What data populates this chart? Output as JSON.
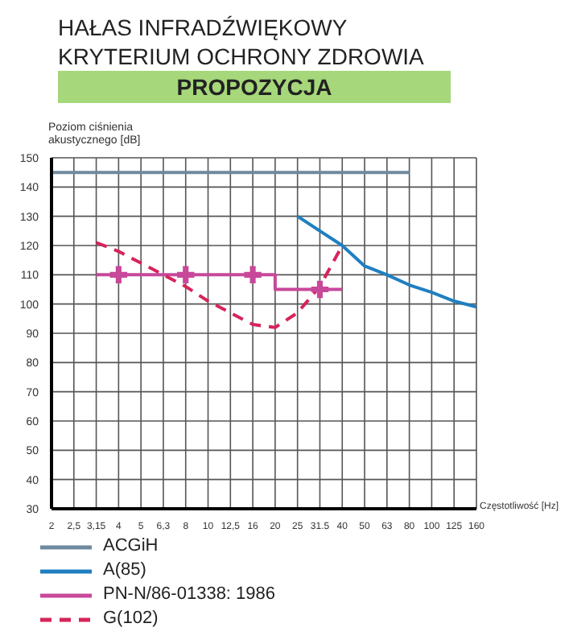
{
  "chart_data": {
    "type": "line",
    "title": "HAŁAS INFRADŹWIĘKOWY\nKRYTERIUM OCHRONY ZDROWIA",
    "subtitle": "PROPOZYCJA",
    "xlabel": "Częstotliwość [Hz]",
    "ylabel": "Poziom ciśnienia\nakustycznego [dB]",
    "categories": [
      "2",
      "2,5",
      "3,15",
      "4",
      "5",
      "6,3",
      "8",
      "10",
      "12,5",
      "16",
      "20",
      "25",
      "31.5",
      "40",
      "50",
      "63",
      "80",
      "100",
      "125",
      "160"
    ],
    "ylim": [
      30,
      150
    ],
    "yticks": [
      30,
      40,
      50,
      60,
      70,
      80,
      90,
      100,
      110,
      120,
      130,
      140,
      150
    ],
    "grid": true,
    "legend": "bottom",
    "marker": "none",
    "series": [
      {
        "name": "ACGiH",
        "color": "#6f8a9e",
        "values": [
          145,
          145,
          145,
          145,
          145,
          145,
          145,
          145,
          145,
          145,
          145,
          145,
          145,
          145,
          145,
          145,
          145,
          null,
          null,
          null
        ]
      },
      {
        "name": "A(85)",
        "color": "#1f7fc0",
        "values": [
          null,
          null,
          null,
          null,
          null,
          null,
          null,
          null,
          null,
          null,
          null,
          130,
          125,
          120,
          113,
          110,
          106.5,
          104,
          101,
          99
        ]
      },
      {
        "name": "PN-N/86-01338: 1986",
        "color": "#c8489a",
        "type": "step",
        "values": [
          null,
          null,
          110,
          110,
          110,
          110,
          110,
          110,
          110,
          110,
          105,
          105,
          105,
          105,
          null,
          null,
          null,
          null,
          null,
          null
        ]
      },
      {
        "name": "G(102)",
        "color": "#d6245a",
        "line_style": "dashed",
        "values": [
          null,
          null,
          121,
          118,
          114,
          110,
          106,
          101,
          97,
          93,
          92,
          97,
          106,
          120,
          null,
          null,
          null,
          null,
          null,
          null
        ]
      },
      {
        "color": "#c8489a",
        "type": "scatter",
        "marker": "cross",
        "x": [
          "4",
          "8",
          "16",
          "31.5"
        ],
        "values": [
          110,
          110,
          110,
          105
        ]
      }
    ]
  }
}
